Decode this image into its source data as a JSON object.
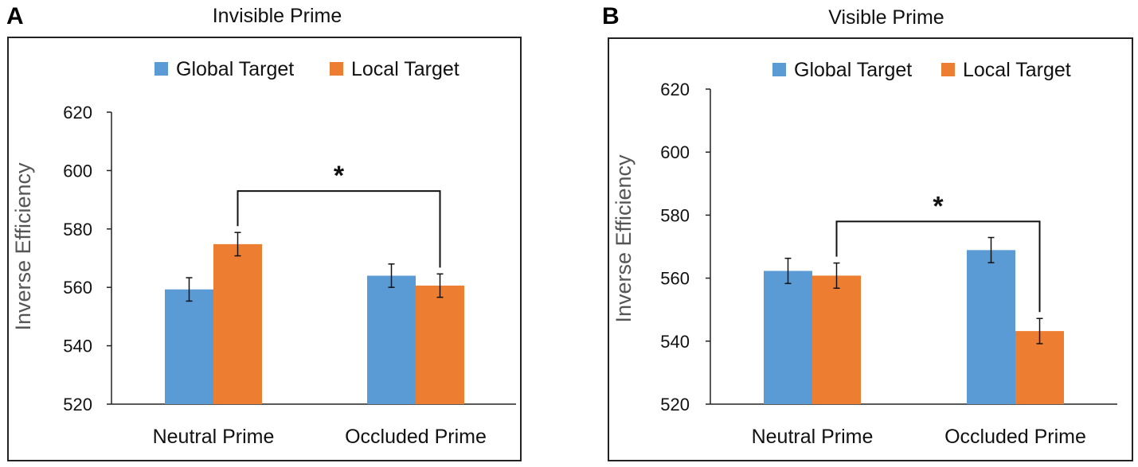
{
  "chart_data": [
    {
      "type": "bar",
      "panel_label": "A",
      "title": "Invisible Prime",
      "ylabel": "Inverse Efficiency",
      "xlabel": "",
      "categories": [
        "Neutral Prime",
        "Occluded Prime"
      ],
      "series": [
        {
          "name": "Global Target",
          "color": "#5b9bd5",
          "values": [
            559.3,
            564.0
          ],
          "errors": [
            4.0,
            4.0
          ]
        },
        {
          "name": "Local Target",
          "color": "#ed7d31",
          "values": [
            574.8,
            560.6
          ],
          "errors": [
            4.0,
            4.0
          ]
        }
      ],
      "ylim": [
        520,
        620
      ],
      "yticks": [
        520,
        540,
        560,
        580,
        600,
        620
      ],
      "legend": "top-center",
      "significance": {
        "label": "*",
        "from_category": 0,
        "from_series": 1,
        "to_category": 1,
        "to_series": 1,
        "level": 593
      }
    },
    {
      "type": "bar",
      "panel_label": "B",
      "title": "Visible Prime",
      "ylabel": "Inverse Efficiency",
      "xlabel": "",
      "categories": [
        "Neutral Prime",
        "Occluded Prime"
      ],
      "series": [
        {
          "name": "Global Target",
          "color": "#5b9bd5",
          "values": [
            562.3,
            568.9
          ],
          "errors": [
            4.0,
            4.0
          ]
        },
        {
          "name": "Local Target",
          "color": "#ed7d31",
          "values": [
            560.8,
            543.2
          ],
          "errors": [
            4.0,
            4.0
          ]
        }
      ],
      "ylim": [
        520,
        620
      ],
      "yticks": [
        520,
        540,
        560,
        580,
        600,
        620
      ],
      "legend": "top-center",
      "significance": {
        "label": "*",
        "from_category": 0,
        "from_series": 1,
        "to_category": 1,
        "to_series": 1,
        "level": 578
      }
    }
  ]
}
